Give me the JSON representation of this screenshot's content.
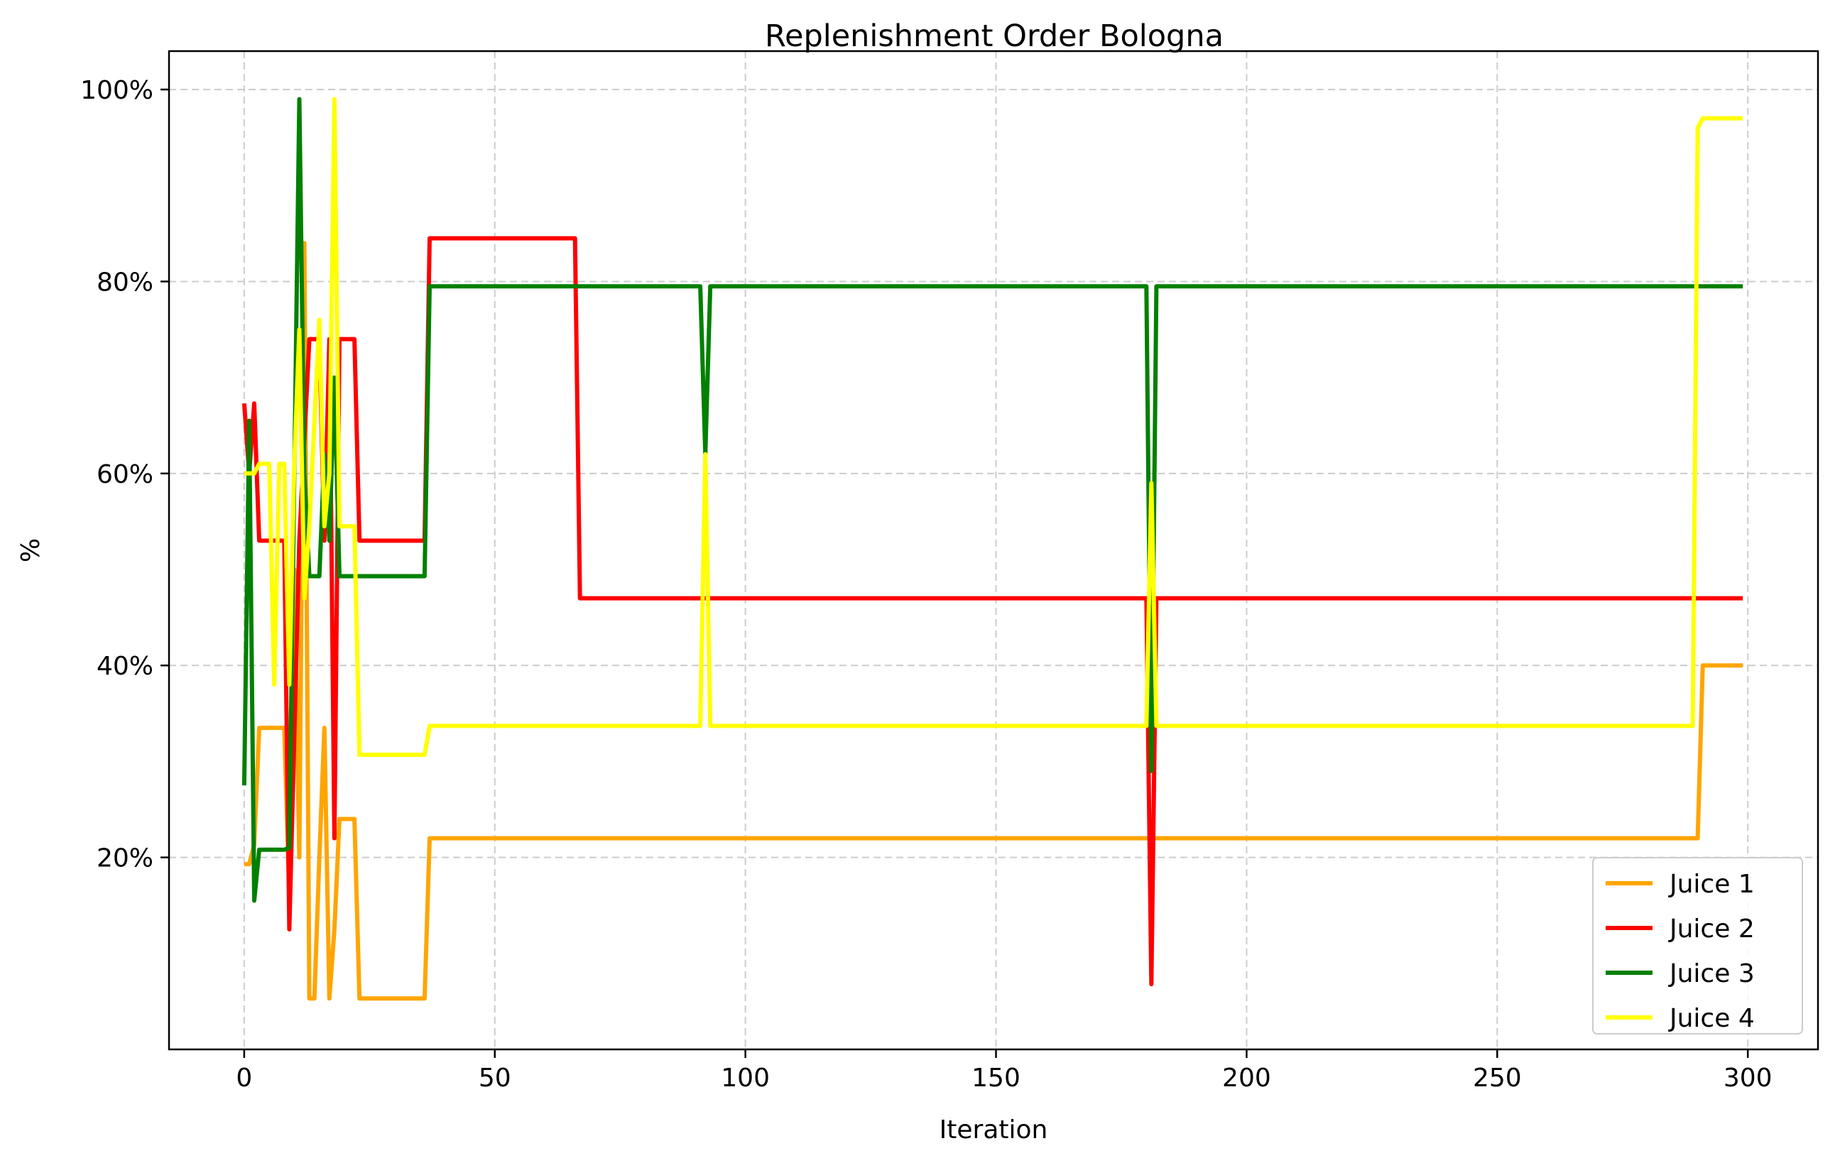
{
  "chart_data": {
    "type": "line",
    "title": "Replenishment Order Bologna",
    "xlabel": "Iteration",
    "ylabel": "%",
    "xlim": [
      -15,
      314
    ],
    "ylim": [
      0.0,
      1.04
    ],
    "x_ticks": [
      0,
      50,
      100,
      150,
      200,
      250,
      300
    ],
    "x_tick_labels": [
      "0",
      "50",
      "100",
      "150",
      "200",
      "250",
      "300"
    ],
    "y_ticks": [
      0.2,
      0.4,
      0.6,
      0.8,
      1.0
    ],
    "y_tick_labels": [
      "20%",
      "40%",
      "60%",
      "80%",
      "100%"
    ],
    "grid": true,
    "legend_position": "lower right",
    "series": [
      {
        "name": "Juice 1",
        "color": "#ffa500",
        "points": [
          [
            0,
            0.193
          ],
          [
            1,
            0.193
          ],
          [
            2,
            0.213
          ],
          [
            3,
            0.335
          ],
          [
            6,
            0.335
          ],
          [
            7,
            0.335
          ],
          [
            8,
            0.335
          ],
          [
            9,
            0.16
          ],
          [
            10,
            0.5
          ],
          [
            11,
            0.2
          ],
          [
            12,
            0.84
          ],
          [
            13,
            0.053
          ],
          [
            14,
            0.053
          ],
          [
            15,
            0.2
          ],
          [
            16,
            0.335
          ],
          [
            17,
            0.053
          ],
          [
            18,
            0.125
          ],
          [
            19,
            0.24
          ],
          [
            22,
            0.24
          ],
          [
            23,
            0.053
          ],
          [
            36,
            0.053
          ],
          [
            37,
            0.22
          ],
          [
            290,
            0.22
          ],
          [
            291,
            0.4
          ],
          [
            299,
            0.4
          ]
        ]
      },
      {
        "name": "Juice 2",
        "color": "#ff0000",
        "points": [
          [
            0,
            0.673
          ],
          [
            1,
            0.6
          ],
          [
            2,
            0.673
          ],
          [
            3,
            0.53
          ],
          [
            6,
            0.53
          ],
          [
            8,
            0.53
          ],
          [
            9,
            0.125
          ],
          [
            11,
            0.53
          ],
          [
            13,
            0.74
          ],
          [
            15,
            0.74
          ],
          [
            16,
            0.53
          ],
          [
            17,
            0.74
          ],
          [
            18,
            0.22
          ],
          [
            19,
            0.74
          ],
          [
            22,
            0.74
          ],
          [
            23,
            0.53
          ],
          [
            36,
            0.53
          ],
          [
            37,
            0.845
          ],
          [
            66,
            0.845
          ],
          [
            67,
            0.47
          ],
          [
            180,
            0.47
          ],
          [
            181,
            0.068
          ],
          [
            182,
            0.47
          ],
          [
            299,
            0.47
          ]
        ]
      },
      {
        "name": "Juice 3",
        "color": "#008000",
        "points": [
          [
            0,
            0.275
          ],
          [
            1,
            0.655
          ],
          [
            2,
            0.155
          ],
          [
            3,
            0.208
          ],
          [
            8,
            0.208
          ],
          [
            9,
            0.21
          ],
          [
            10,
            0.6
          ],
          [
            11,
            0.99
          ],
          [
            12,
            0.6
          ],
          [
            13,
            0.493
          ],
          [
            15,
            0.493
          ],
          [
            16,
            0.62
          ],
          [
            17,
            0.53
          ],
          [
            18,
            0.7
          ],
          [
            19,
            0.493
          ],
          [
            36,
            0.493
          ],
          [
            37,
            0.795
          ],
          [
            91,
            0.795
          ],
          [
            92,
            0.62
          ],
          [
            93,
            0.795
          ],
          [
            180,
            0.795
          ],
          [
            181,
            0.29
          ],
          [
            182,
            0.795
          ],
          [
            299,
            0.795
          ]
        ]
      },
      {
        "name": "Juice 4",
        "color": "#ffff00",
        "points": [
          [
            0,
            0.6
          ],
          [
            2,
            0.6
          ],
          [
            3,
            0.61
          ],
          [
            5,
            0.61
          ],
          [
            6,
            0.38
          ],
          [
            7,
            0.61
          ],
          [
            8,
            0.61
          ],
          [
            9,
            0.38
          ],
          [
            10,
            0.61
          ],
          [
            11,
            0.75
          ],
          [
            12,
            0.47
          ],
          [
            13,
            0.545
          ],
          [
            15,
            0.76
          ],
          [
            16,
            0.545
          ],
          [
            17,
            0.6
          ],
          [
            18,
            0.99
          ],
          [
            19,
            0.545
          ],
          [
            22,
            0.545
          ],
          [
            23,
            0.307
          ],
          [
            36,
            0.307
          ],
          [
            37,
            0.337
          ],
          [
            91,
            0.337
          ],
          [
            92,
            0.62
          ],
          [
            93,
            0.337
          ],
          [
            180,
            0.337
          ],
          [
            181,
            0.59
          ],
          [
            182,
            0.337
          ],
          [
            289,
            0.337
          ],
          [
            290,
            0.96
          ],
          [
            291,
            0.97
          ],
          [
            299,
            0.97
          ]
        ]
      }
    ]
  }
}
